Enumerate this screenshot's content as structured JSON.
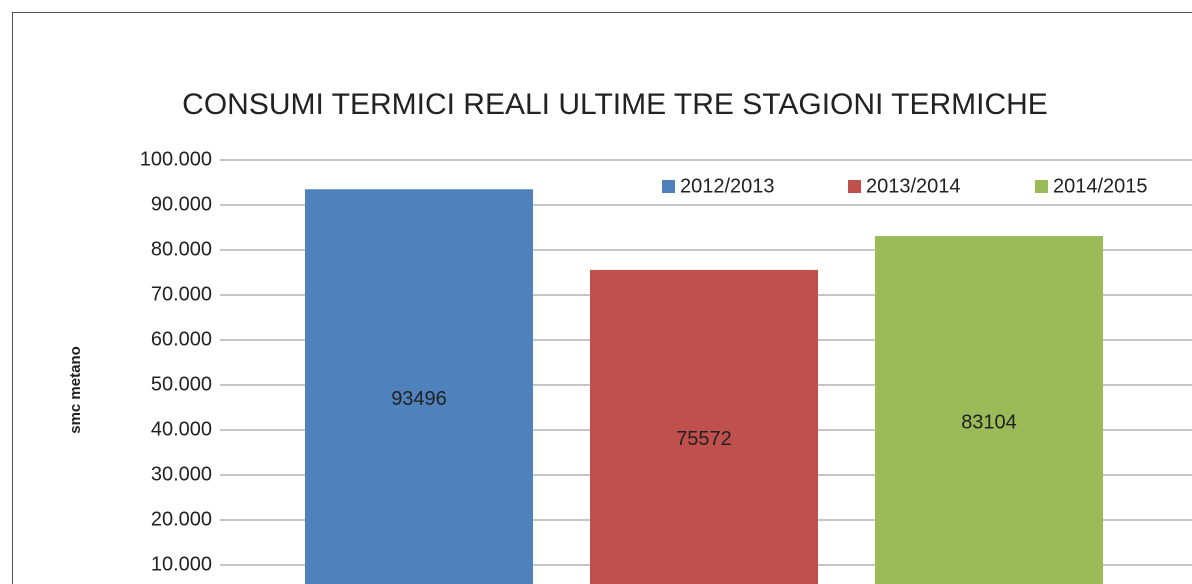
{
  "chart_data": {
    "type": "bar",
    "title": "CONSUMI TERMICI REALI ULTIME TRE STAGIONI TERMICHE",
    "ylabel": "smc metano",
    "series": [
      {
        "name": "2012/2013",
        "color": "#4f81bd",
        "values": [
          93496
        ]
      },
      {
        "name": "2013/2014",
        "color": "#c0504d",
        "values": [
          75572
        ]
      },
      {
        "name": "2014/2015",
        "color": "#9bbb59",
        "values": [
          83104
        ]
      }
    ],
    "ylim": [
      5000,
      100000
    ],
    "yticks": [
      {
        "value": 10000,
        "label": "10.000"
      },
      {
        "value": 20000,
        "label": "20.000"
      },
      {
        "value": 30000,
        "label": "30.000"
      },
      {
        "value": 40000,
        "label": "40.000"
      },
      {
        "value": 50000,
        "label": "50.000"
      },
      {
        "value": 60000,
        "label": "60.000"
      },
      {
        "value": 70000,
        "label": "70.000"
      },
      {
        "value": 80000,
        "label": "80.000"
      },
      {
        "value": 90000,
        "label": "90.000"
      },
      {
        "value": 100000,
        "label": "100.000"
      }
    ],
    "grid": true,
    "legend": "top-right",
    "data_labels": true
  }
}
